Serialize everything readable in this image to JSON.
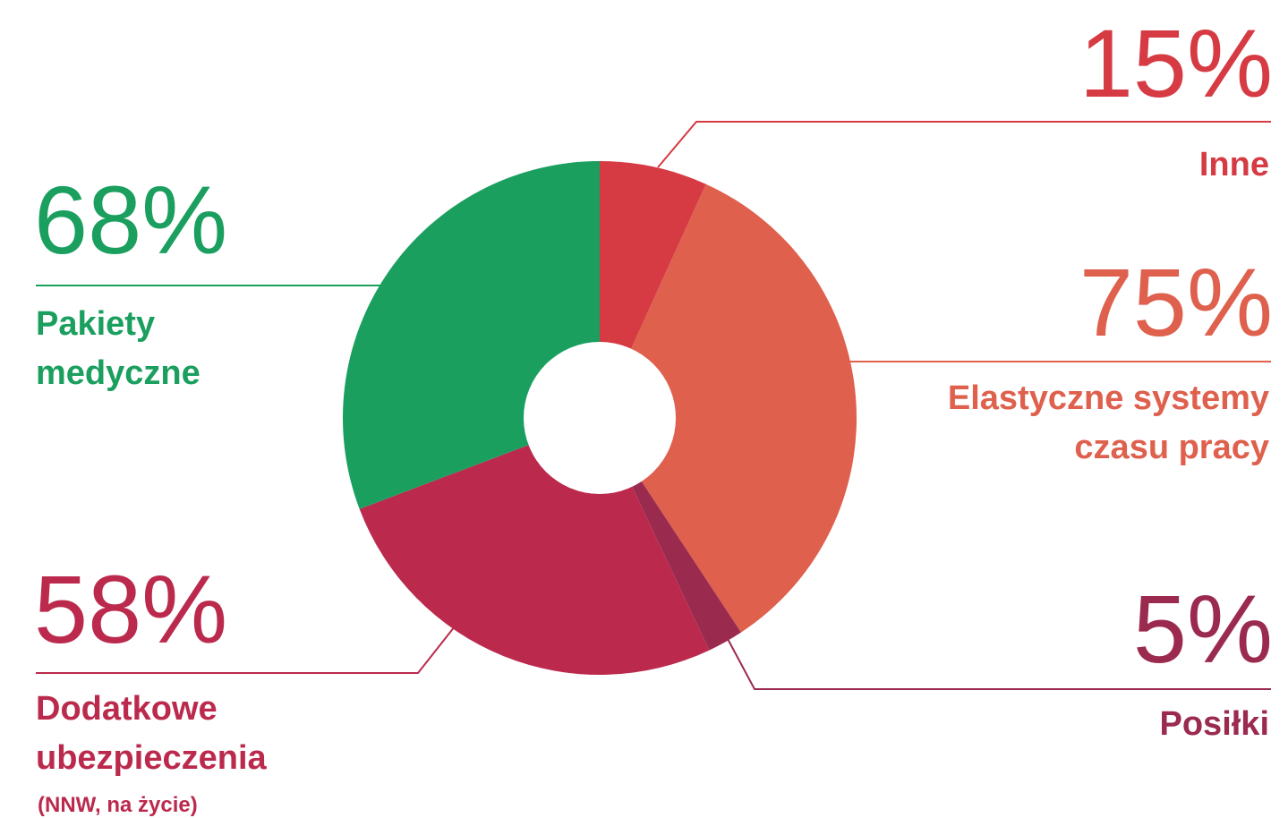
{
  "chart_data": {
    "type": "pie",
    "categories": [
      "Inne",
      "Elastyczne systemy czasu pracy",
      "Posiłki",
      "Dodatkowe ubezpieczenia",
      "Pakiety medyczne"
    ],
    "values": [
      15,
      75,
      5,
      58,
      68
    ],
    "value_labels": [
      "15%",
      "75%",
      "5%",
      "58%",
      "68%"
    ],
    "colors": [
      "#d63a43",
      "#de604d",
      "#9b2a4f",
      "#bb2a4d",
      "#1a9f5f"
    ],
    "annotation": "(NNW, na życie)"
  }
}
